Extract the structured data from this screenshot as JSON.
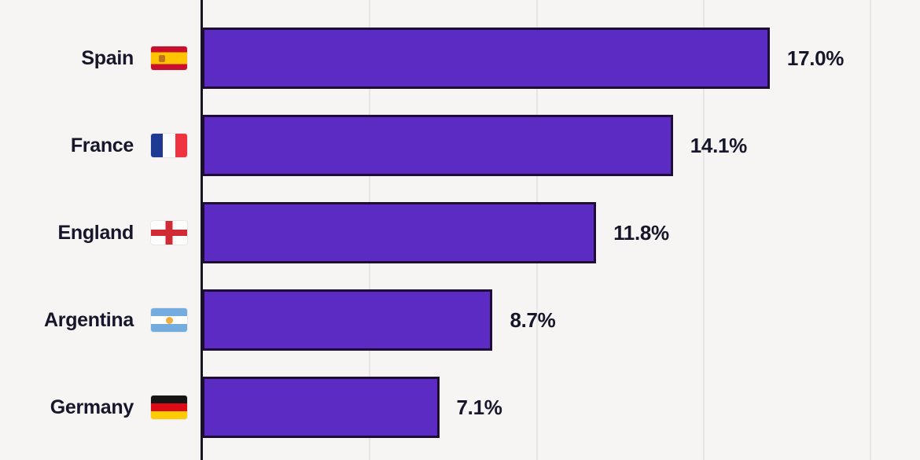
{
  "colors": {
    "bar": "#5b2bc4",
    "bar_border": "#1e0e35",
    "background": "#f6f5f3",
    "gridline": "#e7e6e3",
    "axis": "#15151f",
    "text": "#17162b"
  },
  "chart_data": {
    "type": "bar",
    "orientation": "horizontal",
    "title": "",
    "categories": [
      "Spain",
      "France",
      "England",
      "Argentina",
      "Germany"
    ],
    "values": [
      17.0,
      14.1,
      11.8,
      8.7,
      7.1
    ],
    "xlim": [
      0,
      21.5
    ],
    "xticks": [
      5,
      10,
      15,
      20
    ],
    "grid": "vertical",
    "legend": "none",
    "rows": [
      {
        "country": "Spain",
        "flag": "spain",
        "value": 17.0,
        "label": "17.0%"
      },
      {
        "country": "France",
        "flag": "france",
        "value": 14.1,
        "label": "14.1%"
      },
      {
        "country": "England",
        "flag": "england",
        "value": 11.8,
        "label": "11.8%"
      },
      {
        "country": "Argentina",
        "flag": "argentina",
        "value": 8.7,
        "label": "8.7%"
      },
      {
        "country": "Germany",
        "flag": "germany",
        "value": 7.1,
        "label": "7.1%"
      }
    ]
  }
}
